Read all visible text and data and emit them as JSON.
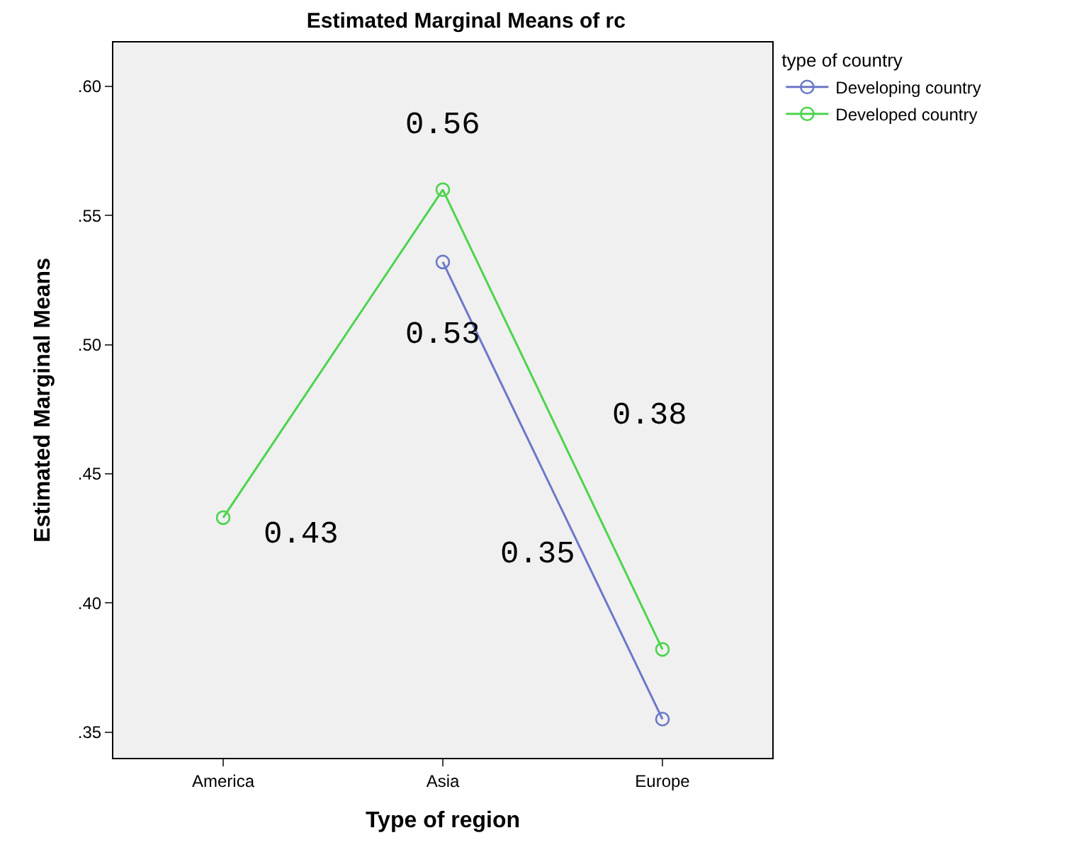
{
  "chart_data": {
    "type": "line",
    "title": "Estimated Marginal Means of rc",
    "xlabel": "Type of region",
    "ylabel": "Estimated Marginal Means",
    "legend_title": "type of country",
    "categories": [
      "America",
      "Asia",
      "Europe"
    ],
    "series": [
      {
        "name": "Developing country",
        "color": "#6a78c8",
        "values": [
          null,
          0.532,
          0.355
        ]
      },
      {
        "name": "Developed country",
        "color": "#4cd44c",
        "values": [
          0.433,
          0.56,
          0.382
        ]
      }
    ],
    "ylim": [
      0.34,
      0.617
    ],
    "yticks": [
      {
        "value": 0.35,
        "label": ".35"
      },
      {
        "value": 0.4,
        "label": ".40"
      },
      {
        "value": 0.45,
        "label": ".45"
      },
      {
        "value": 0.5,
        "label": ".50"
      },
      {
        "value": 0.55,
        "label": ".55"
      },
      {
        "value": 0.6,
        "label": ".60"
      }
    ],
    "annotations": [
      {
        "text": "0.56",
        "x": "Asia",
        "y": 0.56
      },
      {
        "text": "0.53",
        "x": "Asia",
        "y": 0.532
      },
      "0.38",
      {
        "text": "0.43",
        "x": "America",
        "y": 0.433
      },
      "0.35"
    ],
    "marker": "circle",
    "line_style": "solid",
    "grid": false,
    "legend": "top right"
  }
}
